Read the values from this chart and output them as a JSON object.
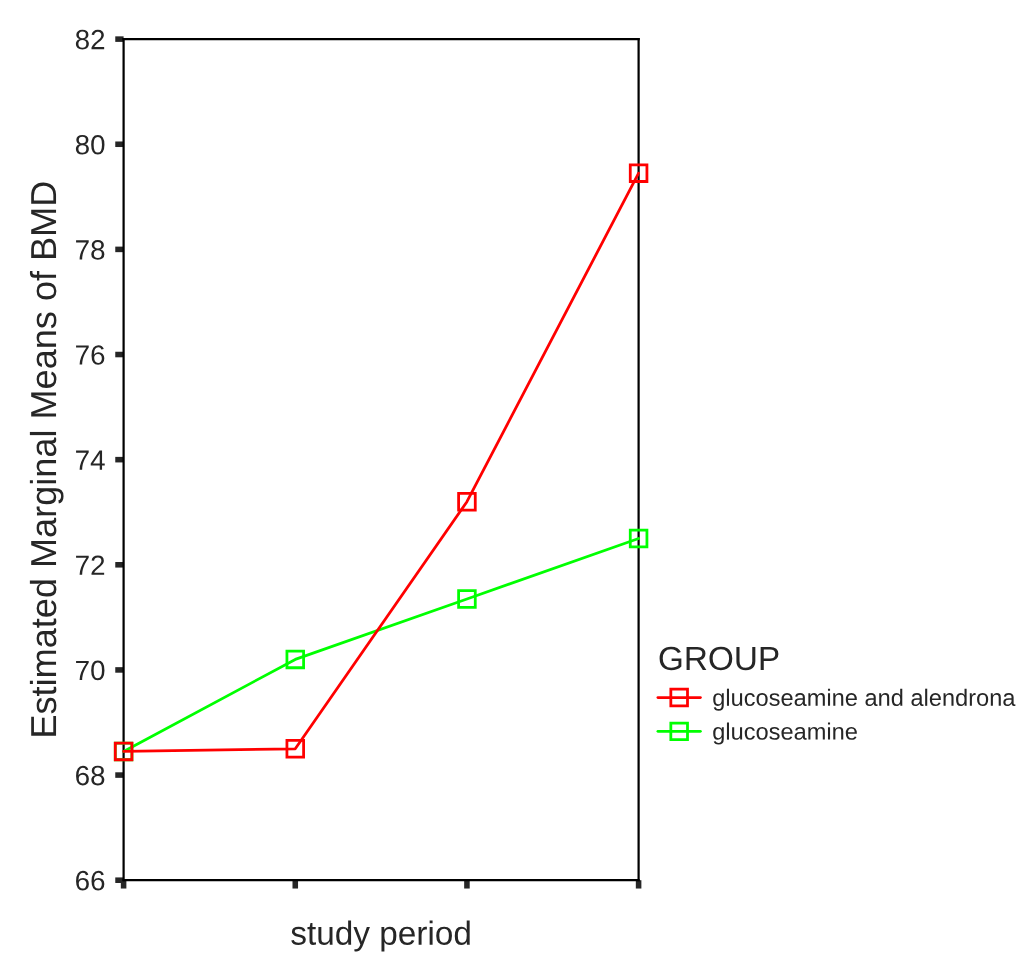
{
  "chart_data": {
    "type": "line",
    "xlabel": "study period",
    "ylabel": "Estimated Marginal Means of BMD",
    "legend_title": "GROUP",
    "categories": [
      null,
      null,
      null,
      null
    ],
    "series": [
      {
        "name": "glucoseamine and alendrona",
        "color": "#ff0000",
        "values": [
          68.45,
          68.5,
          73.2,
          79.45
        ]
      },
      {
        "name": "glucoseamine",
        "color": "#00ff00",
        "values": [
          68.45,
          70.2,
          71.35,
          72.5
        ]
      }
    ],
    "ylim": [
      66,
      82
    ],
    "yticks": [
      66,
      68,
      70,
      72,
      74,
      76,
      78,
      80,
      82
    ],
    "marker": "square",
    "line_style": "solid",
    "grid": false,
    "legend": "right"
  }
}
